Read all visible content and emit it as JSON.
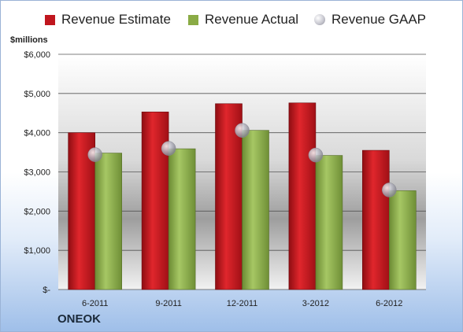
{
  "company": "ONEOK",
  "colors": {
    "estimate": "#c0161e",
    "actual": "#8aab45",
    "gaap": "#b9b9c4"
  },
  "chart_data": {
    "type": "bar",
    "title": "",
    "unit_label": "$millions",
    "categories": [
      "6-2011",
      "9-2011",
      "12-2011",
      "3-2012",
      "6-2012"
    ],
    "series": [
      {
        "name": "Revenue Estimate",
        "type": "bar",
        "values": [
          4000,
          4530,
          4740,
          4760,
          3550
        ]
      },
      {
        "name": "Revenue Actual",
        "type": "bar",
        "values": [
          3480,
          3590,
          4060,
          3420,
          2520
        ]
      },
      {
        "name": "Revenue GAAP",
        "type": "marker",
        "values": [
          3440,
          3600,
          4060,
          3430,
          2540
        ]
      }
    ],
    "ylim": [
      0,
      6000
    ],
    "yticks": [
      0,
      1000,
      2000,
      3000,
      4000,
      5000,
      6000
    ],
    "ytick_labels": [
      "$-",
      "$1,000",
      "$2,000",
      "$3,000",
      "$4,000",
      "$5,000",
      "$6,000"
    ],
    "legend_position": "top",
    "grid": true
  }
}
